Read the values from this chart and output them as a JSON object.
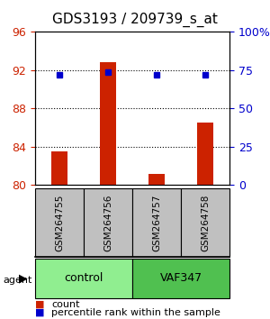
{
  "title": "GDS3193 / 209739_s_at",
  "samples": [
    "GSM264755",
    "GSM264756",
    "GSM264757",
    "GSM264758"
  ],
  "count_values": [
    83.5,
    92.8,
    81.2,
    86.5
  ],
  "percentile_values": [
    72,
    74,
    72,
    72
  ],
  "ylim_left": [
    80,
    96
  ],
  "ylim_right": [
    0,
    100
  ],
  "yticks_left": [
    80,
    84,
    88,
    92,
    96
  ],
  "yticks_right": [
    0,
    25,
    50,
    75,
    100
  ],
  "ytick_labels_right": [
    "0",
    "25",
    "50",
    "75",
    "100%"
  ],
  "groups": [
    {
      "label": "control",
      "indices": [
        0,
        1
      ],
      "color": "#90EE90"
    },
    {
      "label": "VAF347",
      "indices": [
        2,
        3
      ],
      "color": "#50C050"
    }
  ],
  "group_label_prefix": "agent",
  "bar_color": "#CC2200",
  "dot_color": "#0000CC",
  "background_color": "#ffffff",
  "plot_bg_color": "#ffffff",
  "sample_box_color": "#C0C0C0",
  "grid_color": "#000000",
  "title_fontsize": 11,
  "tick_fontsize": 9,
  "legend_fontsize": 8
}
